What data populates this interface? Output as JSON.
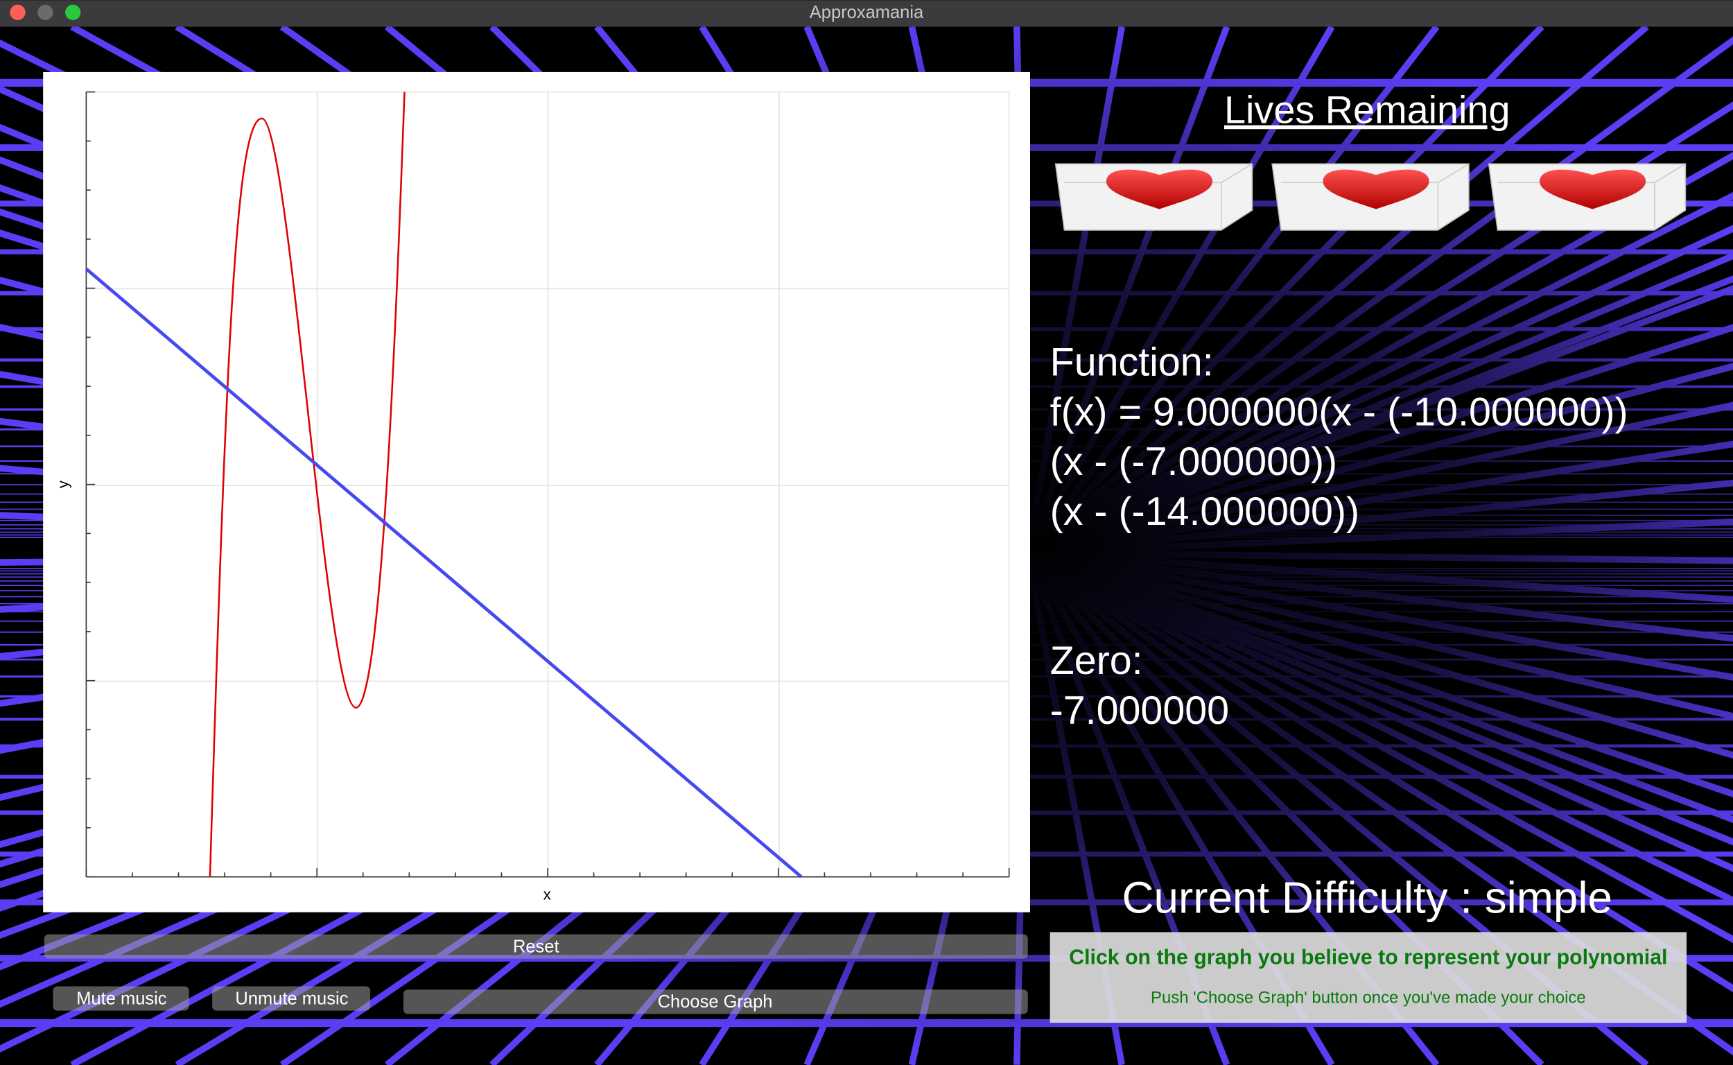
{
  "window": {
    "title": "Approxamania"
  },
  "graph": {
    "x_label": "x",
    "y_label": "y"
  },
  "lives": {
    "title": "Lives Remaining"
  },
  "function": {
    "label": "Function:",
    "lines": [
      "f(x) = 9.000000(x - (-10.000000))",
      "(x - (-7.000000))",
      "(x - (-14.000000))"
    ]
  },
  "zero": {
    "label": "Zero:",
    "value": "-7.000000"
  },
  "difficulty": "Current Difficulty : simple",
  "buttons": {
    "reset": "Reset",
    "mute": "Mute music",
    "unmute": "Unmute music",
    "choose": "Choose Graph"
  },
  "instructions": {
    "primary": "Click on the graph you believe to represent your polynomial",
    "secondary": "Push 'Choose Graph' button once you've made your choice"
  }
}
